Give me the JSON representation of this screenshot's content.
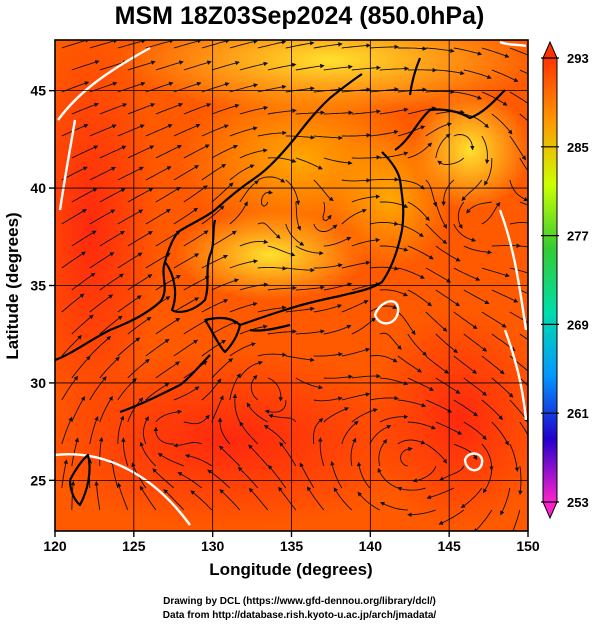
{
  "chart_data": {
    "type": "heatmap",
    "title": "MSM 18Z03Sep2024 (850.0hPa)",
    "xlabel": "Longitude (degrees)",
    "ylabel": "Latitude  (degrees)",
    "xlim": [
      120,
      150
    ],
    "ylim": [
      22.4,
      47.6
    ],
    "x_ticks": [
      120,
      125,
      130,
      135,
      140,
      145,
      150
    ],
    "x_tick_labels": [
      "120",
      "125",
      "130",
      "135",
      "140",
      "145",
      "150"
    ],
    "y_ticks": [
      25,
      30,
      35,
      40,
      45
    ],
    "y_tick_labels": [
      "25",
      "30",
      "35",
      "40",
      "45"
    ],
    "colorbar": {
      "min": 253,
      "max": 293,
      "ticks": [
        253,
        261,
        269,
        277,
        285,
        293
      ],
      "tick_labels": [
        "253",
        "261",
        "269",
        "277",
        "285",
        "293"
      ],
      "colors": [
        "#ff22cc",
        "#2200cc",
        "#0099ff",
        "#00ddaa",
        "#33cc33",
        "#ccff00",
        "#ff9900",
        "#ff3300"
      ]
    },
    "grid": true,
    "overlay": "streamlines",
    "colors": {
      "warm": "#ff5a00",
      "hot": "#ff2a10",
      "mild": "#ffb000",
      "cool": "#ffe020",
      "contour": "#ffffff"
    }
  },
  "credits": {
    "line1": "Drawing by DCL (https://www.gfd-dennou.org/library/dcl/)",
    "line2": "Data from http://database.rish.kyoto-u.ac.jp/arch/jmadata/"
  }
}
